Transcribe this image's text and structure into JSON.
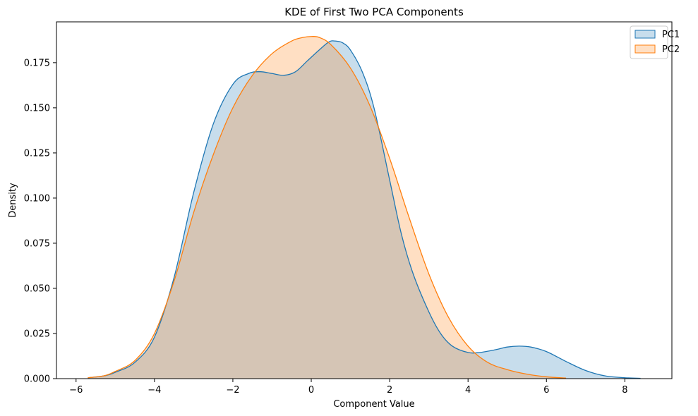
{
  "chart_data": {
    "type": "area",
    "title": "KDE of First Two PCA Components",
    "xlabel": "Component Value",
    "ylabel": "Density",
    "xlim": [
      -6.5,
      9.2
    ],
    "ylim": [
      0,
      0.1976
    ],
    "xticks": [
      -6,
      -4,
      -2,
      0,
      2,
      4,
      6,
      8
    ],
    "yticks": [
      0.0,
      0.025,
      0.05,
      0.075,
      0.1,
      0.125,
      0.15,
      0.175
    ],
    "ytick_labels": [
      "0.000",
      "0.025",
      "0.050",
      "0.075",
      "0.100",
      "0.125",
      "0.150",
      "0.175"
    ],
    "grid": false,
    "legend_position": "top-right",
    "series": [
      {
        "name": "PC1",
        "color": "#1f77b4",
        "fill_opacity": 0.25,
        "x": [
          -5.7,
          -5.3,
          -5.0,
          -4.5,
          -4.0,
          -3.5,
          -3.0,
          -2.5,
          -2.0,
          -1.6,
          -1.3,
          -1.0,
          -0.7,
          -0.4,
          -0.1,
          0.2,
          0.45,
          0.6,
          0.8,
          1.0,
          1.3,
          1.6,
          2.0,
          2.3,
          2.6,
          3.0,
          3.3,
          3.6,
          4.0,
          4.3,
          4.7,
          5.0,
          5.3,
          5.6,
          6.0,
          6.5,
          7.0,
          7.5,
          8.0,
          8.4
        ],
        "y": [
          0.0005,
          0.0015,
          0.0035,
          0.009,
          0.023,
          0.056,
          0.103,
          0.141,
          0.163,
          0.169,
          0.17,
          0.169,
          0.168,
          0.17,
          0.176,
          0.182,
          0.1865,
          0.187,
          0.186,
          0.182,
          0.17,
          0.15,
          0.11,
          0.08,
          0.058,
          0.037,
          0.025,
          0.018,
          0.0145,
          0.0145,
          0.016,
          0.0175,
          0.018,
          0.0175,
          0.015,
          0.0095,
          0.0045,
          0.0015,
          0.0005,
          0.0002
        ]
      },
      {
        "name": "PC2",
        "color": "#ff7f0e",
        "fill_opacity": 0.25,
        "x": [
          -5.7,
          -5.3,
          -5.0,
          -4.5,
          -4.0,
          -3.5,
          -3.0,
          -2.5,
          -2.0,
          -1.5,
          -1.0,
          -0.5,
          -0.2,
          0.0,
          0.2,
          0.5,
          1.0,
          1.5,
          2.0,
          2.5,
          3.0,
          3.5,
          4.0,
          4.5,
          5.0,
          5.5,
          6.0,
          6.5
        ],
        "y": [
          0.0005,
          0.0015,
          0.004,
          0.01,
          0.025,
          0.054,
          0.092,
          0.124,
          0.15,
          0.168,
          0.18,
          0.187,
          0.189,
          0.1895,
          0.189,
          0.185,
          0.172,
          0.151,
          0.122,
          0.089,
          0.058,
          0.034,
          0.018,
          0.009,
          0.005,
          0.0025,
          0.001,
          0.0003
        ]
      }
    ]
  }
}
